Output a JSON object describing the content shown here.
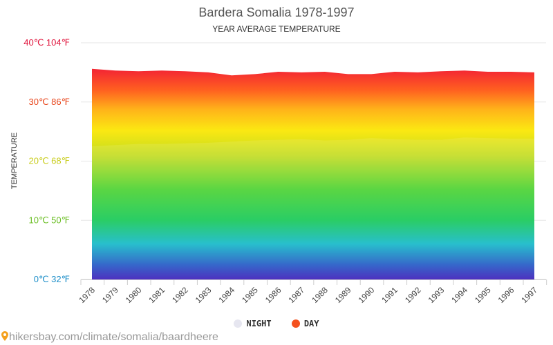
{
  "chart_data": {
    "type": "area",
    "title": "Bardera Somalia 1978-1997",
    "subtitle": "YEAR AVERAGE TEMPERATURE",
    "ylabel": "TEMPERATURE",
    "ylim": [
      0,
      40
    ],
    "y_ticks": [
      {
        "value": 0,
        "label": "0℃ 32℉",
        "color": "#1e8fc9"
      },
      {
        "value": 10,
        "label": "10℃ 50℉",
        "color": "#6cbf26"
      },
      {
        "value": 20,
        "label": "20℃ 68℉",
        "color": "#c8cc1a"
      },
      {
        "value": 30,
        "label": "30℃ 86℉",
        "color": "#e8461c"
      },
      {
        "value": 40,
        "label": "40℃ 104℉",
        "color": "#e0143c"
      }
    ],
    "categories": [
      "1978",
      "1979",
      "1980",
      "1981",
      "1982",
      "1983",
      "1984",
      "1985",
      "1986",
      "1987",
      "1988",
      "1989",
      "1990",
      "1991",
      "1992",
      "1993",
      "1994",
      "1995",
      "1996",
      "1997"
    ],
    "series": [
      {
        "name": "NIGHT",
        "values": [
          22.5,
          22.7,
          22.9,
          22.9,
          23.0,
          23.1,
          23.3,
          23.5,
          23.6,
          23.7,
          23.5,
          23.6,
          23.9,
          23.7,
          23.6,
          23.6,
          24.0,
          23.9,
          23.8,
          23.8
        ]
      },
      {
        "name": "DAY",
        "values": [
          35.6,
          35.3,
          35.2,
          35.3,
          35.2,
          35.0,
          34.5,
          34.7,
          35.1,
          35.0,
          35.1,
          34.7,
          34.7,
          35.1,
          35.0,
          35.2,
          35.3,
          35.1,
          35.1,
          35.0
        ]
      }
    ],
    "grid": true,
    "legend": "bottom"
  },
  "legend": [
    {
      "label": "NIGHT",
      "color": "#e6e6f0"
    },
    {
      "label": "DAY",
      "color": "#f4511e"
    }
  ],
  "source_text": "hikersbay.com/climate/somalia/baardheere"
}
